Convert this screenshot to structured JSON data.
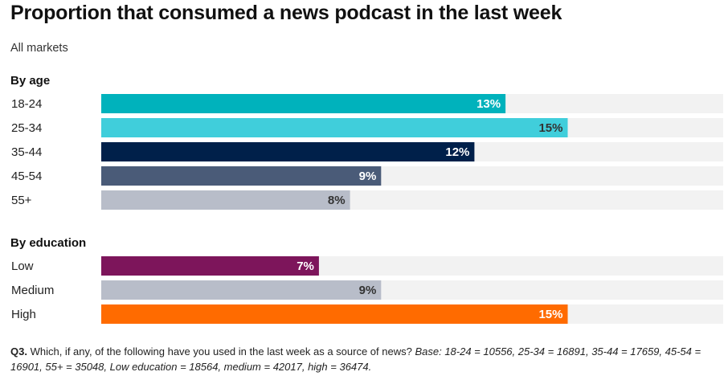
{
  "title": "Proportion that consumed a news podcast in the last week",
  "subtitle": "All markets",
  "colors": {
    "track": "#f2f2f2",
    "label_light": "#ffffff",
    "label_dark": "#333333"
  },
  "chart_data": {
    "type": "bar",
    "orientation": "horizontal",
    "xlim": [
      0,
      100
    ],
    "unit": "%",
    "groups": [
      {
        "name": "By age",
        "categories": [
          "18-24",
          "25-34",
          "35-44",
          "45-54",
          "55+"
        ],
        "values": [
          13,
          15,
          12,
          9,
          8
        ],
        "value_labels": [
          "13%",
          "15%",
          "12%",
          "9%",
          "8%"
        ],
        "colors": [
          "#00b2bc",
          "#40cedb",
          "#00204a",
          "#4a5b78",
          "#b8bdc9"
        ],
        "label_colors": [
          "#ffffff",
          "#333333",
          "#ffffff",
          "#ffffff",
          "#333333"
        ]
      },
      {
        "name": "By education",
        "categories": [
          "Low",
          "Medium",
          "High"
        ],
        "values": [
          7,
          9,
          15
        ],
        "value_labels": [
          "7%",
          "9%",
          "15%"
        ],
        "colors": [
          "#7d155b",
          "#b8bdc9",
          "#ff6b00"
        ],
        "label_colors": [
          "#ffffff",
          "#333333",
          "#ffffff"
        ]
      }
    ]
  },
  "footnote": {
    "label": "Q3.",
    "question": "Which, if any, of the following have you used in the last week as a source of news?",
    "base": "Base: 18-24 = 10556, 25-34 = 16891, 35-44 = 17659, 45-54 = 16901, 55+ = 35048, Low education = 18564, medium = 42017, high = 36474."
  }
}
